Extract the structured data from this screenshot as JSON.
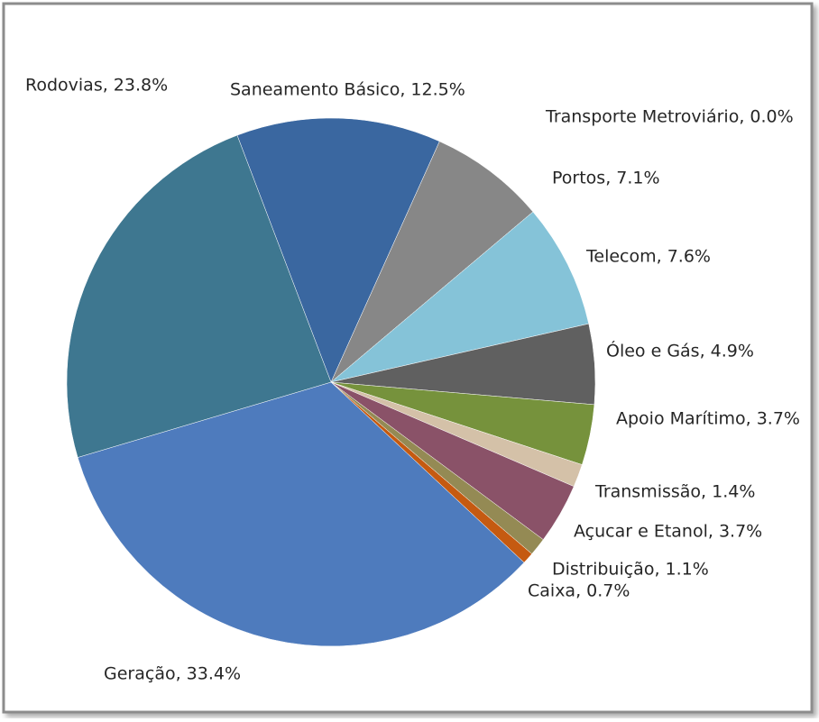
{
  "chart_data": {
    "type": "pie",
    "values": [
      12.5,
      0.0,
      7.1,
      7.6,
      4.9,
      3.7,
      1.4,
      3.7,
      1.1,
      0.7,
      33.4,
      23.8
    ],
    "value_labels": [
      "Saneamento Básico, 12.5%",
      "Transporte Metroviário, 0.0%",
      "Portos, 7.1%",
      "Telecom, 7.6%",
      "Óleo e Gás, 4.9%",
      "Apoio Marítimo, 3.7%",
      "Transmissão, 1.4%",
      "Açucar e Etanol, 3.7%",
      "Distribuição, 1.1%",
      "Caixa, 0.7%",
      "Geração, 33.4%",
      "Rodovias, 23.8%"
    ],
    "colors": [
      "#3a67a0",
      "#c0504d",
      "#878787",
      "#85c3d8",
      "#606060",
      "#76923c",
      "#d4c1a8",
      "#8a5268",
      "#948a54",
      "#c55a11",
      "#4e7bbd",
      "#3e7790"
    ]
  }
}
